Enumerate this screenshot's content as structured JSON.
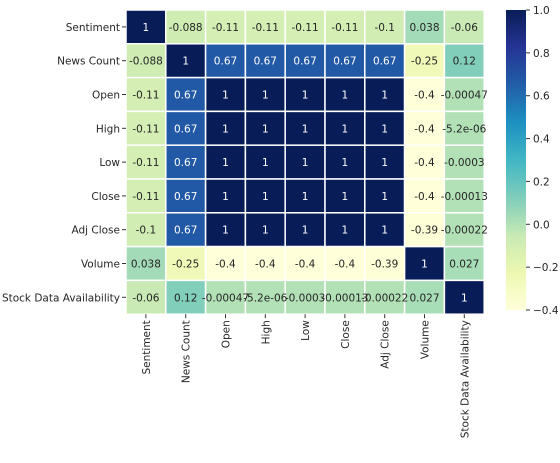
{
  "chart_data": {
    "type": "heatmap",
    "title": "",
    "xlabel": "",
    "ylabel": "",
    "rows": [
      "Sentiment",
      "News Count",
      "Open",
      "High",
      "Low",
      "Close",
      "Adj Close",
      "Volume",
      "Stock Data Availability"
    ],
    "cols": [
      "Sentiment",
      "News Count",
      "Open",
      "High",
      "Low",
      "Close",
      "Adj Close",
      "Volume",
      "Stock Data Availability"
    ],
    "values": [
      [
        1,
        -0.088,
        -0.11,
        -0.11,
        -0.11,
        -0.11,
        -0.1,
        0.038,
        -0.06
      ],
      [
        -0.088,
        1,
        0.67,
        0.67,
        0.67,
        0.67,
        0.67,
        -0.25,
        0.12
      ],
      [
        -0.11,
        0.67,
        1,
        1,
        1,
        1,
        1,
        -0.4,
        -0.00047
      ],
      [
        -0.11,
        0.67,
        1,
        1,
        1,
        1,
        1,
        -0.4,
        -5.2e-06
      ],
      [
        -0.11,
        0.67,
        1,
        1,
        1,
        1,
        1,
        -0.4,
        -0.0003
      ],
      [
        -0.11,
        0.67,
        1,
        1,
        1,
        1,
        1,
        -0.4,
        -0.00013
      ],
      [
        -0.1,
        0.67,
        1,
        1,
        1,
        1,
        1,
        -0.39,
        -0.00022
      ],
      [
        0.038,
        -0.25,
        -0.4,
        -0.4,
        -0.4,
        -0.4,
        -0.39,
        1,
        0.027
      ],
      [
        -0.06,
        0.12,
        -0.00047,
        -5.2e-06,
        -0.0003,
        -0.00013,
        -0.00022,
        0.027,
        1
      ]
    ],
    "labels": [
      [
        "1",
        "-0.088",
        "-0.11",
        "-0.11",
        "-0.11",
        "-0.11",
        "-0.1",
        "0.038",
        "-0.06"
      ],
      [
        "-0.088",
        "1",
        "0.67",
        "0.67",
        "0.67",
        "0.67",
        "0.67",
        "-0.25",
        "0.12"
      ],
      [
        "-0.11",
        "0.67",
        "1",
        "1",
        "1",
        "1",
        "1",
        "-0.4",
        "-0.00047"
      ],
      [
        "-0.11",
        "0.67",
        "1",
        "1",
        "1",
        "1",
        "1",
        "-0.4",
        "-5.2e-06"
      ],
      [
        "-0.11",
        "0.67",
        "1",
        "1",
        "1",
        "1",
        "1",
        "-0.4",
        "-0.0003"
      ],
      [
        "-0.11",
        "0.67",
        "1",
        "1",
        "1",
        "1",
        "1",
        "-0.4",
        "-0.00013"
      ],
      [
        "-0.1",
        "0.67",
        "1",
        "1",
        "1",
        "1",
        "1",
        "-0.39",
        "-0.00022"
      ],
      [
        "0.038",
        "-0.25",
        "-0.4",
        "-0.4",
        "-0.4",
        "-0.4",
        "-0.39",
        "1",
        "0.027"
      ],
      [
        "-0.06",
        "0.12",
        "-0.00047",
        "-5.2e-06",
        "-0.0003",
        "-0.00013",
        "-0.00022",
        "0.027",
        "1"
      ]
    ],
    "colorscale": "YlGnBu",
    "vmin": -0.4,
    "vmax": 1.0,
    "colorbar_ticks": [
      1.0,
      0.8,
      0.6,
      0.4,
      0.2,
      0.0,
      -0.2,
      -0.4
    ],
    "colorbar_tick_labels": [
      "1.0",
      "0.8",
      "0.6",
      "0.4",
      "0.2",
      "0.0",
      "−0.2",
      "−0.4"
    ],
    "grid": false,
    "cell_borders": true
  }
}
